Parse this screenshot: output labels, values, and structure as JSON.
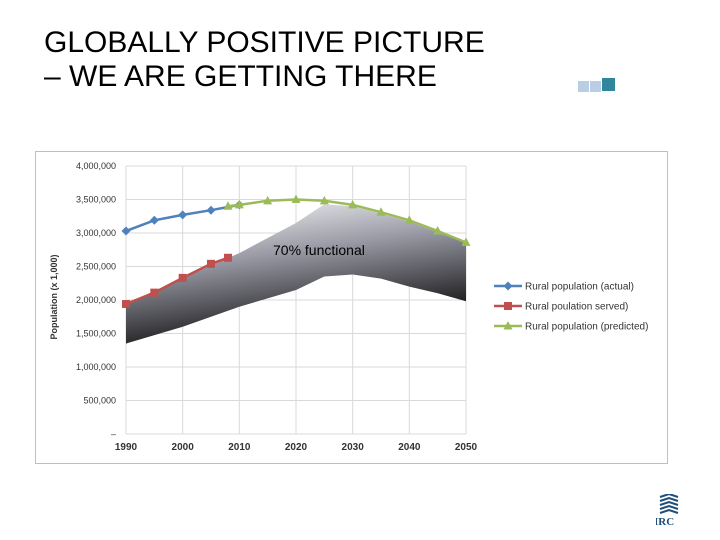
{
  "slide": {
    "title_line1": "GLOBALLY POSITIVE PICTURE",
    "title_line2": "– WE ARE GETTING THERE",
    "logo_text": "IRC"
  },
  "colors": {
    "actual": "#4f81bd",
    "served": "#c0504d",
    "predicted": "#9bbb59",
    "deco_light": "#b9cde5",
    "deco_dark": "#31859c",
    "logo": "#1f4e79"
  },
  "chart_data": {
    "type": "line",
    "ylabel": "Population (x 1,000)",
    "xlabel": "",
    "xlim": [
      1990,
      2050
    ],
    "ylim": [
      0,
      4000000
    ],
    "x_ticks": [
      "1990",
      "2000",
      "2010",
      "2020",
      "2030",
      "2040",
      "2050"
    ],
    "y_ticks": [
      "–",
      "500,000",
      "1,000,000",
      "1,500,000",
      "2,000,000",
      "2,500,000",
      "3,000,000",
      "3,500,000",
      "4,000,000"
    ],
    "grid": true,
    "legend_position": "right",
    "annotation": "70% functional",
    "series": [
      {
        "name": "Rural population (actual)",
        "marker": "diamond",
        "x": [
          1990,
          1995,
          2000,
          2005,
          2010
        ],
        "y": [
          3030000,
          3190000,
          3270000,
          3340000,
          3420000
        ]
      },
      {
        "name": "Rural poulation served)",
        "marker": "square",
        "x": [
          1990,
          1995,
          2000,
          2005,
          2008
        ],
        "y": [
          1940000,
          2110000,
          2330000,
          2540000,
          2630000
        ]
      },
      {
        "name": "Rural population (predicted)",
        "marker": "triangle",
        "x": [
          2008,
          2010,
          2015,
          2020,
          2025,
          2030,
          2035,
          2040,
          2045,
          2050
        ],
        "y": [
          3400000,
          3420000,
          3480000,
          3500000,
          3480000,
          3420000,
          3310000,
          3190000,
          3030000,
          2860000
        ]
      }
    ],
    "band": {
      "x": [
        1990,
        2000,
        2010,
        2020,
        2025,
        2030,
        2035,
        2040,
        2045,
        2050
      ],
      "upper": [
        1940000,
        2330000,
        2700000,
        3150000,
        3430000,
        3400000,
        3290000,
        3170000,
        3010000,
        2850000
      ],
      "lower": [
        1350000,
        1600000,
        1900000,
        2150000,
        2350000,
        2380000,
        2320000,
        2200000,
        2100000,
        1980000
      ]
    }
  }
}
